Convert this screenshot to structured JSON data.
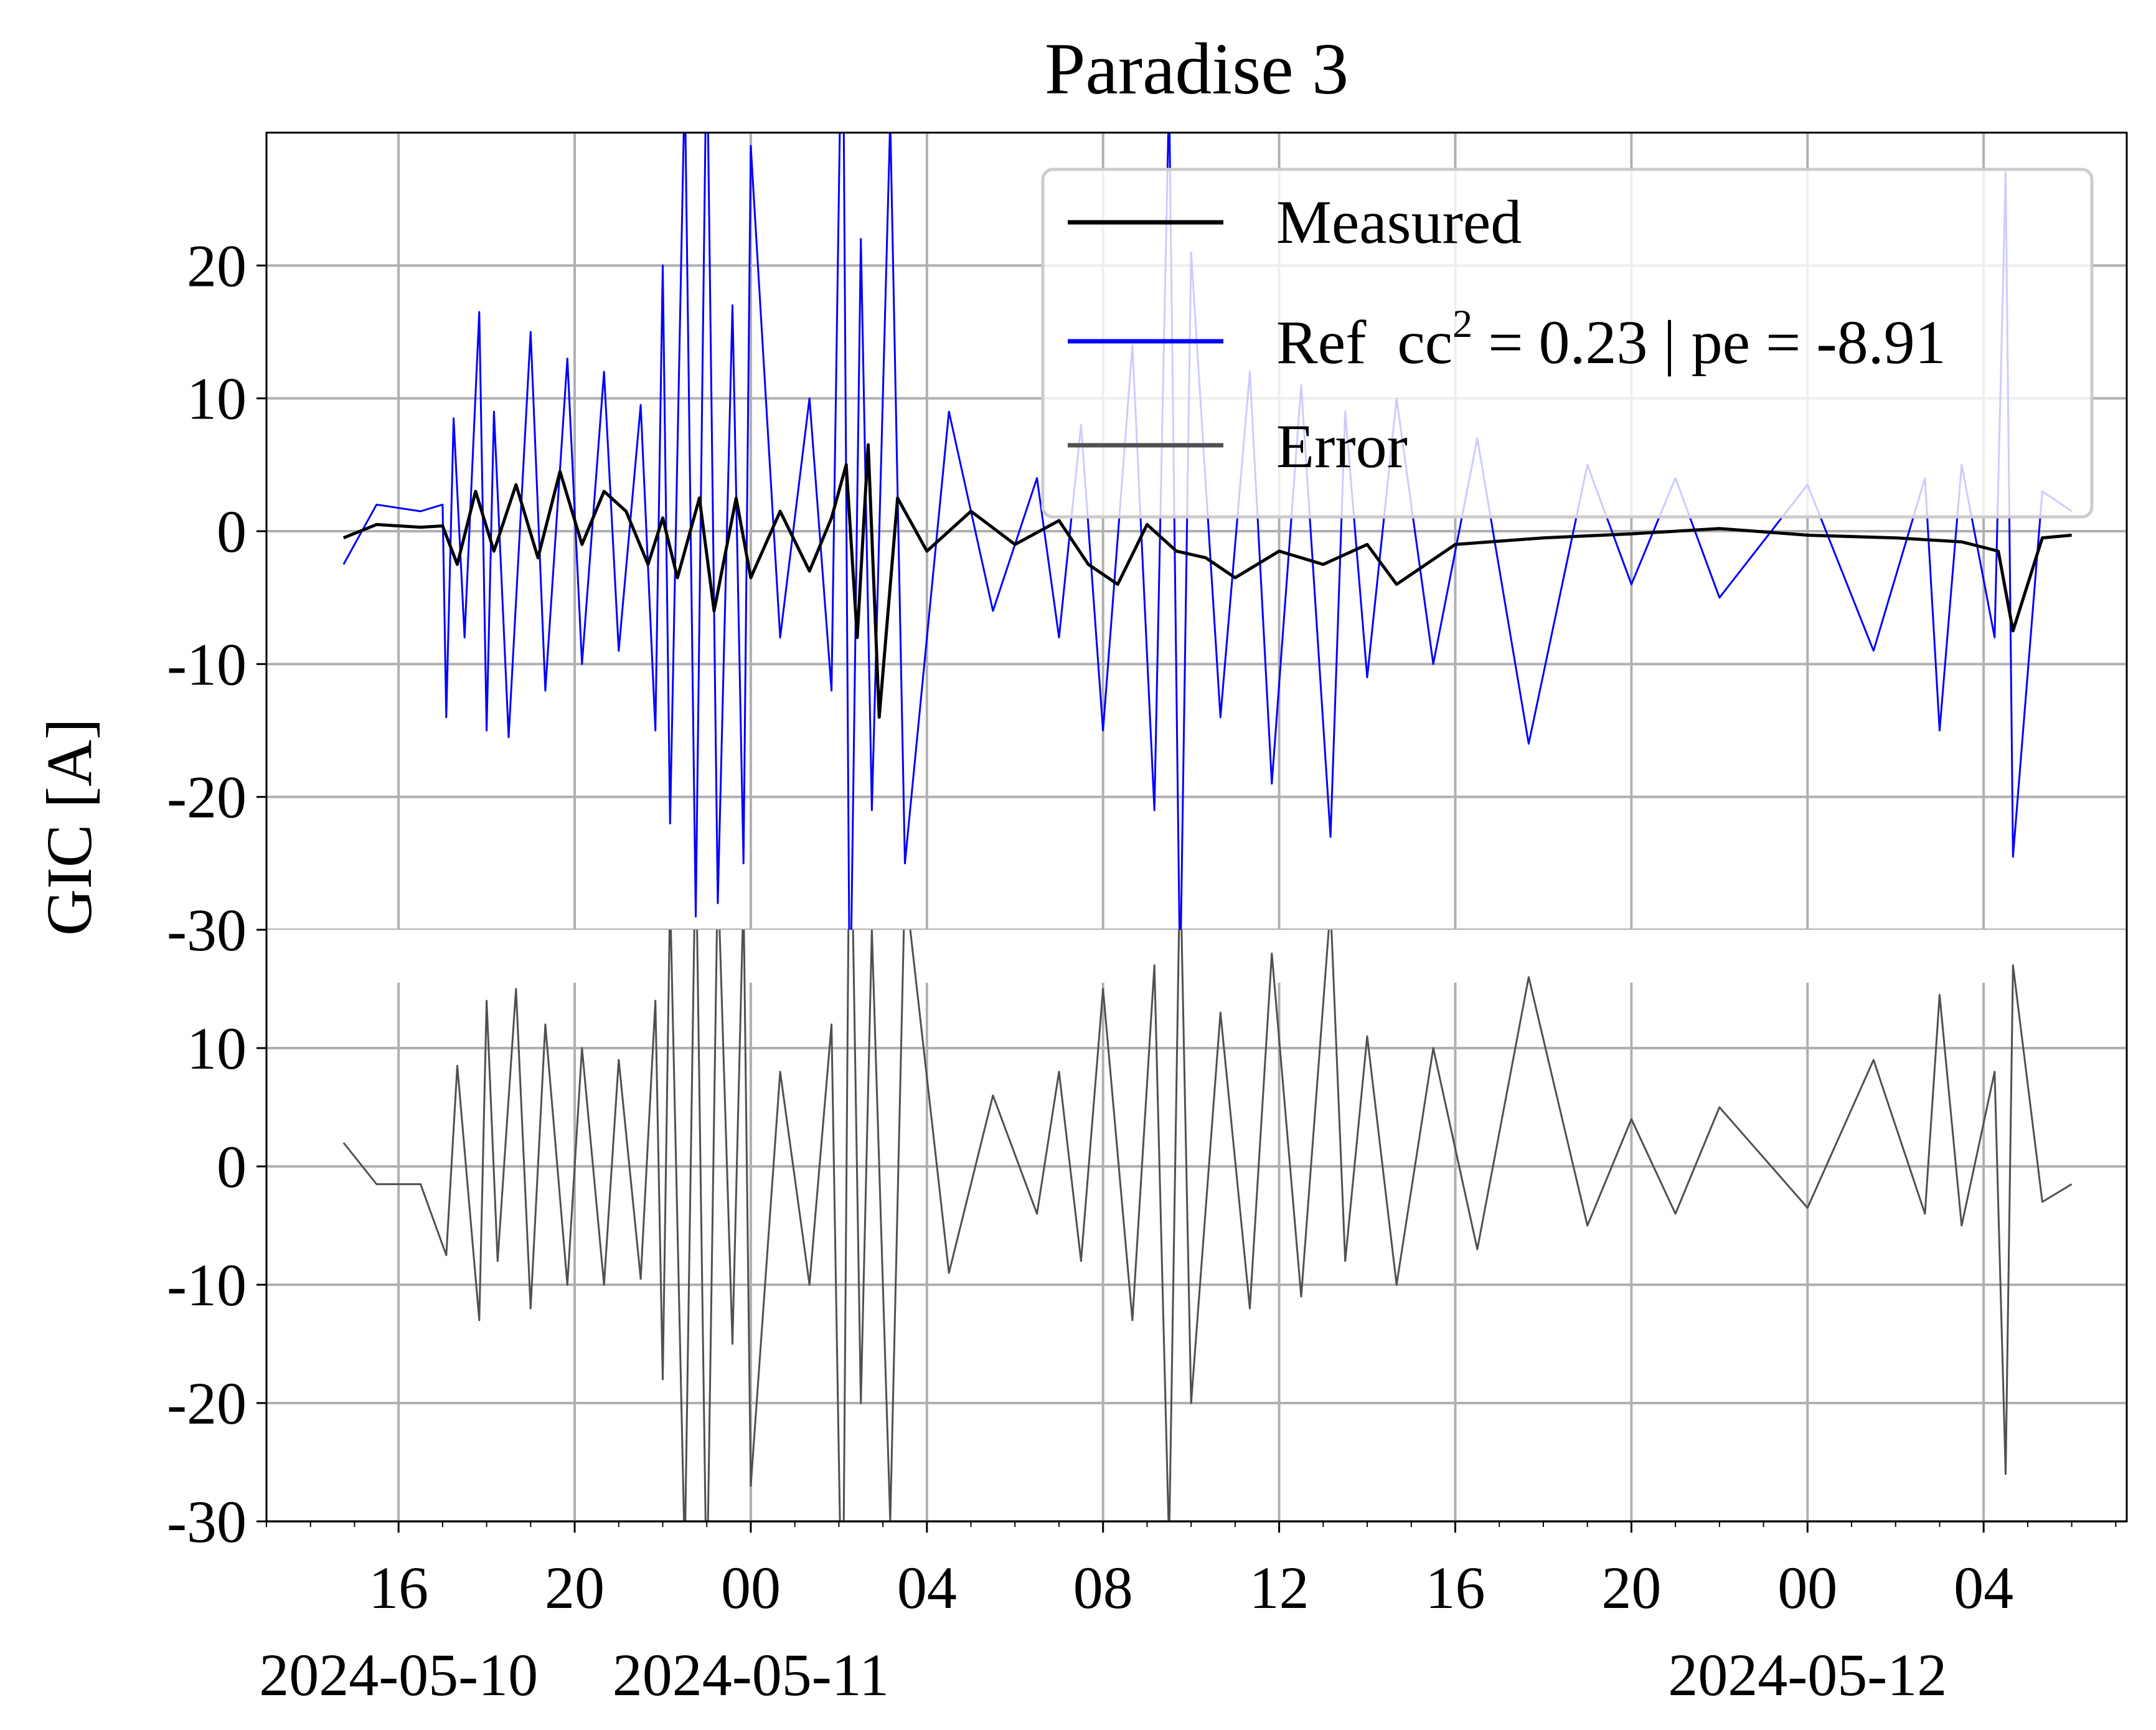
{
  "chart_data": {
    "type": "line",
    "title": "Paradise 3",
    "ylabel": "GIC [A]",
    "xlabel": "",
    "x_range": [
      "2024-05-10T13:00",
      "2024-05-12T07:15"
    ],
    "data_range": [
      "2024-05-10T14:45",
      "2024-05-12T06:00"
    ],
    "upper_panel": {
      "ylim": [
        -30,
        30
      ],
      "y_ticks": [
        "20",
        "10",
        "0",
        "-10",
        "-20",
        "-30"
      ],
      "y_tick_values": [
        20,
        10,
        0,
        -10,
        -20,
        -30
      ]
    },
    "lower_panel": {
      "ylim": [
        -30,
        20
      ],
      "y_ticks": [
        "10",
        "0",
        "-10",
        "-20",
        "-30"
      ],
      "y_tick_values": [
        10,
        0,
        -10,
        -20,
        -30
      ]
    },
    "x_ticks": [
      {
        "time": "2024-05-10T16:00",
        "label": "16",
        "date": "2024-05-10"
      },
      {
        "time": "2024-05-10T20:00",
        "label": "20",
        "date": ""
      },
      {
        "time": "2024-05-11T00:00",
        "label": "00",
        "date": "2024-05-11"
      },
      {
        "time": "2024-05-11T04:00",
        "label": "04",
        "date": ""
      },
      {
        "time": "2024-05-11T08:00",
        "label": "08",
        "date": ""
      },
      {
        "time": "2024-05-11T12:00",
        "label": "12",
        "date": ""
      },
      {
        "time": "2024-05-11T16:00",
        "label": "16",
        "date": ""
      },
      {
        "time": "2024-05-11T20:00",
        "label": "20",
        "date": ""
      },
      {
        "time": "2024-05-12T00:00",
        "label": "00",
        "date": "2024-05-12"
      },
      {
        "time": "2024-05-12T04:00",
        "label": "04",
        "date": ""
      }
    ],
    "legend": {
      "placement": "upper-right",
      "entries": [
        {
          "label": "Measured",
          "color": "#000000"
        },
        {
          "label_prefix": "Ref  cc",
          "label_sup": "2",
          "label_suffix": " = 0.23 | pe = -8.91",
          "color": "#0000ff"
        },
        {
          "label": "Error",
          "color": "#505050"
        }
      ]
    },
    "grid": true,
    "series": [
      {
        "name": "Measured",
        "color": "#000000",
        "x": [
          "2024-05-10T14:45",
          "2024-05-10T15:30",
          "2024-05-10T16:30",
          "2024-05-10T17:00",
          "2024-05-10T17:20",
          "2024-05-10T17:45",
          "2024-05-10T18:10",
          "2024-05-10T18:40",
          "2024-05-10T19:10",
          "2024-05-10T19:40",
          "2024-05-10T20:10",
          "2024-05-10T20:40",
          "2024-05-10T21:10",
          "2024-05-10T21:40",
          "2024-05-10T22:00",
          "2024-05-10T22:20",
          "2024-05-10T22:50",
          "2024-05-10T23:10",
          "2024-05-10T23:40",
          "2024-05-11T00:00",
          "2024-05-11T00:40",
          "2024-05-11T01:20",
          "2024-05-11T01:50",
          "2024-05-11T02:10",
          "2024-05-11T02:25",
          "2024-05-11T02:40",
          "2024-05-11T02:55",
          "2024-05-11T03:20",
          "2024-05-11T04:00",
          "2024-05-11T05:00",
          "2024-05-11T06:00",
          "2024-05-11T07:00",
          "2024-05-11T07:40",
          "2024-05-11T08:20",
          "2024-05-11T09:00",
          "2024-05-11T09:40",
          "2024-05-11T10:20",
          "2024-05-11T11:00",
          "2024-05-11T12:00",
          "2024-05-11T13:00",
          "2024-05-11T14:00",
          "2024-05-11T14:40",
          "2024-05-11T16:00",
          "2024-05-11T18:00",
          "2024-05-11T20:00",
          "2024-05-11T22:00",
          "2024-05-12T00:00",
          "2024-05-12T02:00",
          "2024-05-12T03:30",
          "2024-05-12T04:20",
          "2024-05-12T04:40",
          "2024-05-12T05:20",
          "2024-05-12T06:00"
        ],
        "values": [
          -0.5,
          0.5,
          0.3,
          0.4,
          -2.5,
          3.0,
          -1.5,
          3.5,
          -2.0,
          4.5,
          -1.0,
          3.0,
          1.5,
          -2.5,
          1.0,
          -3.5,
          2.5,
          -6.0,
          2.5,
          -3.5,
          1.5,
          -3.0,
          1.0,
          5.0,
          -8.0,
          6.5,
          -14.0,
          2.5,
          -1.5,
          1.5,
          -1.0,
          0.8,
          -2.5,
          -4.0,
          0.5,
          -1.5,
          -2.0,
          -3.5,
          -1.5,
          -2.5,
          -1.0,
          -4.0,
          -1.0,
          -0.5,
          -0.2,
          0.2,
          -0.3,
          -0.5,
          -0.8,
          -1.5,
          -7.5,
          -0.5,
          -0.3
        ]
      },
      {
        "name": "Ref",
        "color": "#0000ff",
        "x": [
          "2024-05-10T14:45",
          "2024-05-10T15:30",
          "2024-05-10T16:30",
          "2024-05-10T17:00",
          "2024-05-10T17:05",
          "2024-05-10T17:15",
          "2024-05-10T17:30",
          "2024-05-10T17:50",
          "2024-05-10T18:00",
          "2024-05-10T18:10",
          "2024-05-10T18:30",
          "2024-05-10T19:00",
          "2024-05-10T19:20",
          "2024-05-10T19:50",
          "2024-05-10T20:10",
          "2024-05-10T20:40",
          "2024-05-10T21:00",
          "2024-05-10T21:30",
          "2024-05-10T21:50",
          "2024-05-10T22:00",
          "2024-05-10T22:10",
          "2024-05-10T22:30",
          "2024-05-10T22:45",
          "2024-05-10T23:00",
          "2024-05-10T23:15",
          "2024-05-10T23:35",
          "2024-05-10T23:50",
          "2024-05-11T00:00",
          "2024-05-11T00:40",
          "2024-05-11T01:20",
          "2024-05-11T01:50",
          "2024-05-11T02:05",
          "2024-05-11T02:15",
          "2024-05-11T02:30",
          "2024-05-11T02:45",
          "2024-05-11T03:10",
          "2024-05-11T03:30",
          "2024-05-11T04:30",
          "2024-05-11T05:30",
          "2024-05-11T06:30",
          "2024-05-11T07:00",
          "2024-05-11T07:30",
          "2024-05-11T08:00",
          "2024-05-11T08:40",
          "2024-05-11T09:10",
          "2024-05-11T09:30",
          "2024-05-11T09:45",
          "2024-05-11T10:00",
          "2024-05-11T10:40",
          "2024-05-11T11:20",
          "2024-05-11T11:50",
          "2024-05-11T12:30",
          "2024-05-11T13:10",
          "2024-05-11T13:30",
          "2024-05-11T14:00",
          "2024-05-11T14:40",
          "2024-05-11T15:30",
          "2024-05-11T16:30",
          "2024-05-11T17:40",
          "2024-05-11T19:00",
          "2024-05-11T20:00",
          "2024-05-11T21:00",
          "2024-05-11T22:00",
          "2024-05-12T00:00",
          "2024-05-12T01:30",
          "2024-05-12T02:40",
          "2024-05-12T03:00",
          "2024-05-12T03:30",
          "2024-05-12T04:15",
          "2024-05-12T04:30",
          "2024-05-12T04:40",
          "2024-05-12T05:20",
          "2024-05-12T06:00"
        ],
        "values": [
          -2.5,
          2.0,
          1.5,
          2.0,
          -14.0,
          8.5,
          -8.0,
          16.5,
          -15.0,
          9.0,
          -15.5,
          15.0,
          -12.0,
          13.0,
          -10.0,
          12.0,
          -9.0,
          9.5,
          -15.0,
          20.0,
          -22.0,
          34.0,
          -29.0,
          38.0,
          -28.0,
          17.0,
          -25.0,
          29.0,
          -8.0,
          10.0,
          -12.0,
          44.0,
          -38.0,
          22.0,
          -21.0,
          31.0,
          -25.0,
          9.0,
          -6.0,
          4.0,
          -8.0,
          8.0,
          -15.0,
          14.0,
          -21.0,
          33.0,
          -34.0,
          21.0,
          -14.0,
          12.0,
          -19.0,
          11.0,
          -23.0,
          9.0,
          -11.0,
          10.0,
          -10.0,
          7.0,
          -16.0,
          5.0,
          -4.0,
          4.0,
          -5.0,
          3.5,
          -9.0,
          4.0,
          -15.0,
          5.0,
          -8.0,
          27.0,
          -24.5,
          3.0,
          1.5
        ]
      },
      {
        "name": "Error",
        "color": "#505050",
        "x": [
          "2024-05-10T14:45",
          "2024-05-10T15:30",
          "2024-05-10T16:30",
          "2024-05-10T17:05",
          "2024-05-10T17:20",
          "2024-05-10T17:50",
          "2024-05-10T18:00",
          "2024-05-10T18:15",
          "2024-05-10T18:40",
          "2024-05-10T19:00",
          "2024-05-10T19:20",
          "2024-05-10T19:50",
          "2024-05-10T20:10",
          "2024-05-10T20:40",
          "2024-05-10T21:00",
          "2024-05-10T21:30",
          "2024-05-10T21:50",
          "2024-05-10T22:00",
          "2024-05-10T22:10",
          "2024-05-10T22:30",
          "2024-05-10T22:45",
          "2024-05-10T23:00",
          "2024-05-10T23:15",
          "2024-05-10T23:35",
          "2024-05-10T23:50",
          "2024-05-11T00:00",
          "2024-05-11T00:40",
          "2024-05-11T01:20",
          "2024-05-11T01:50",
          "2024-05-11T02:05",
          "2024-05-11T02:15",
          "2024-05-11T02:30",
          "2024-05-11T02:45",
          "2024-05-11T03:10",
          "2024-05-11T03:30",
          "2024-05-11T04:30",
          "2024-05-11T05:30",
          "2024-05-11T06:30",
          "2024-05-11T07:00",
          "2024-05-11T07:30",
          "2024-05-11T08:00",
          "2024-05-11T08:40",
          "2024-05-11T09:10",
          "2024-05-11T09:30",
          "2024-05-11T09:45",
          "2024-05-11T10:00",
          "2024-05-11T10:40",
          "2024-05-11T11:20",
          "2024-05-11T11:50",
          "2024-05-11T12:30",
          "2024-05-11T13:10",
          "2024-05-11T13:30",
          "2024-05-11T14:00",
          "2024-05-11T14:40",
          "2024-05-11T15:30",
          "2024-05-11T16:30",
          "2024-05-11T17:40",
          "2024-05-11T19:00",
          "2024-05-11T20:00",
          "2024-05-11T21:00",
          "2024-05-11T22:00",
          "2024-05-12T00:00",
          "2024-05-12T01:30",
          "2024-05-12T02:40",
          "2024-05-12T03:00",
          "2024-05-12T03:30",
          "2024-05-12T04:15",
          "2024-05-12T04:30",
          "2024-05-12T04:40",
          "2024-05-12T05:20",
          "2024-05-12T06:00"
        ],
        "values": [
          2.0,
          -1.5,
          -1.5,
          -7.5,
          8.5,
          -13.0,
          14.0,
          -8.0,
          15.0,
          -12.0,
          12.0,
          -10.0,
          10.0,
          -10.0,
          9.0,
          -9.5,
          14.0,
          -18.0,
          23.0,
          -33.0,
          28.0,
          -37.0,
          25.0,
          -15.0,
          23.0,
          -27.0,
          8.0,
          -10.0,
          12.0,
          -43.0,
          36.0,
          -20.0,
          20.0,
          -30.0,
          24.0,
          -9.0,
          6.0,
          -4.0,
          8.0,
          -8.0,
          15.0,
          -13.0,
          17.0,
          -32.0,
          26.0,
          -20.0,
          13.0,
          -12.0,
          18.0,
          -11.0,
          22.0,
          -8.0,
          11.0,
          -10.0,
          10.0,
          -7.0,
          16.0,
          -5.0,
          4.0,
          -4.0,
          5.0,
          -3.5,
          9.0,
          -4.0,
          14.5,
          -5.0,
          8.0,
          -26.0,
          17.0,
          -3.0,
          -1.5
        ]
      }
    ]
  }
}
